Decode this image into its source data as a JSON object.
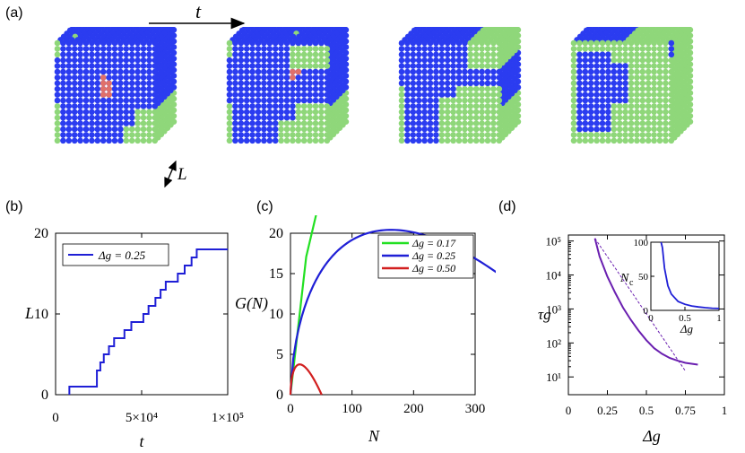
{
  "panel_labels": {
    "a": "(a)",
    "b": "(b)",
    "c": "(c)",
    "d": "(d)"
  },
  "panel_a": {
    "time_label": "t",
    "size_label": "L",
    "colors": {
      "blue": "#2b3cf0",
      "green": "#8fd77a",
      "red": "#e0706a"
    }
  },
  "chart_data": [
    {
      "id": "b",
      "type": "line",
      "xlabel": "t",
      "ylabel": "L",
      "xlim": [
        0,
        100000
      ],
      "ylim": [
        0,
        20
      ],
      "xtick_labels": [
        "0",
        "5×10⁴",
        "1×10⁵"
      ],
      "ytick_labels": [
        "0",
        "10",
        "20"
      ],
      "legend": "Δg = 0.25",
      "series": [
        {
          "name": "Δg = 0.25",
          "color": "#1f1fd6",
          "step": true,
          "x": [
            8000,
            24000,
            26000,
            28000,
            31000,
            34000,
            40000,
            44000,
            51000,
            54000,
            58000,
            61000,
            64000,
            67000,
            71000,
            73000,
            75000,
            79000,
            82000,
            84000,
            86000,
            90000,
            100000
          ],
          "y": [
            1,
            3,
            4,
            5,
            6,
            7,
            8,
            9,
            10,
            11,
            12,
            13,
            14,
            14,
            15,
            15,
            16,
            17,
            18,
            18,
            18,
            18,
            18
          ]
        }
      ]
    },
    {
      "id": "c",
      "type": "line",
      "xlabel": "N",
      "ylabel": "G(N)",
      "xlim": [
        0,
        300
      ],
      "ylim": [
        0,
        20
      ],
      "xtick_labels": [
        "0",
        "100",
        "200",
        "300"
      ],
      "ytick_labels": [
        "0",
        "5",
        "10",
        "15",
        "20"
      ],
      "legend_position": "top-right",
      "series": [
        {
          "name": "Δg = 0.17",
          "color": "#22e022",
          "dg": 0.17
        },
        {
          "name": "Δg = 0.25",
          "color": "#1f1fd6",
          "dg": 0.25
        },
        {
          "name": "Δg = 0.50",
          "color": "#d21f1f",
          "dg": 0.5
        }
      ]
    },
    {
      "id": "d",
      "type": "line",
      "xlabel": "Δg",
      "ylabel": "τg",
      "xlim": [
        0,
        1
      ],
      "ylim": [
        3,
        150000
      ],
      "yscale": "log",
      "xtick_labels": [
        "0",
        "0.25",
        "0.5",
        "0.75",
        "1"
      ],
      "ytick_labels": [
        "10¹",
        "10²",
        "10³",
        "10⁴",
        "10⁵"
      ],
      "series": [
        {
          "name": "",
          "color": "#6a1fb0",
          "x": [
            0.17,
            0.2,
            0.25,
            0.3,
            0.35,
            0.4,
            0.45,
            0.5,
            0.55,
            0.6,
            0.65,
            0.7,
            0.75,
            0.8,
            0.83
          ],
          "y": [
            120000,
            35000,
            9000,
            3000,
            1100,
            480,
            230,
            120,
            70,
            48,
            36,
            30,
            26,
            24,
            23
          ]
        }
      ],
      "inset": {
        "xlabel": "Δg",
        "ylabel": "N_c",
        "xlim": [
          0,
          1
        ],
        "ylim": [
          0,
          100
        ],
        "xtick_labels": [
          "0",
          "0.5",
          "1"
        ],
        "ytick_labels": [
          "0",
          "50",
          "100"
        ],
        "series": [
          {
            "name": "",
            "color": "#1f1fd6",
            "x": [
              0.15,
              0.17,
              0.2,
              0.25,
              0.3,
              0.4,
              0.5,
              0.6,
              0.7,
              0.8,
              0.9,
              1.0
            ],
            "y": [
              100,
              92,
              62,
              36,
              24,
              13,
              9,
              6.5,
              5,
              4,
              3.2,
              2.7
            ]
          }
        ]
      }
    }
  ]
}
